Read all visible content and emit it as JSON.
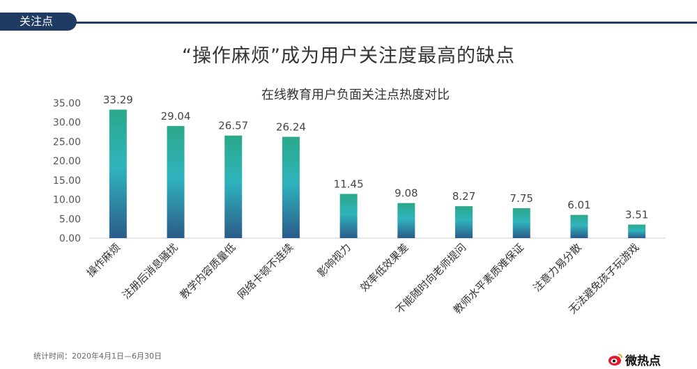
{
  "header": {
    "tag": "关注点"
  },
  "headline": "“操作麻烦”成为用户关注度最高的缺点",
  "chart_data": {
    "type": "bar",
    "title": "在线教育用户负面关注点热度对比",
    "categories": [
      "操作麻烦",
      "注册后消息骚扰",
      "教学内容质量低",
      "网络卡顿不连续",
      "影响视力",
      "效率低效果差",
      "不能随时向老师提问",
      "教师水平素质难保证",
      "注意力易分散",
      "无法避免孩子玩游戏"
    ],
    "values": [
      33.29,
      29.04,
      26.57,
      26.24,
      11.45,
      9.08,
      8.27,
      7.75,
      6.01,
      3.51
    ],
    "value_labels": [
      "33.29",
      "29.04",
      "26.57",
      "26.24",
      "11.45",
      "9.08",
      "8.27",
      "7.75",
      "6.01",
      "3.51"
    ],
    "y_ticks": [
      "0.00",
      "5.00",
      "10.00",
      "15.00",
      "20.00",
      "25.00",
      "30.00",
      "35.00"
    ],
    "ylim": [
      0,
      35
    ],
    "grid": false,
    "legend": "none",
    "bar_gradient": [
      "#2aa889",
      "#2fb4bd",
      "#2b5b8a"
    ]
  },
  "footer": {
    "note": "统计时间：2020年4月1日—6月30日"
  },
  "brand": {
    "name": "微热点",
    "logo_icon": "weibo-eye-icon"
  }
}
